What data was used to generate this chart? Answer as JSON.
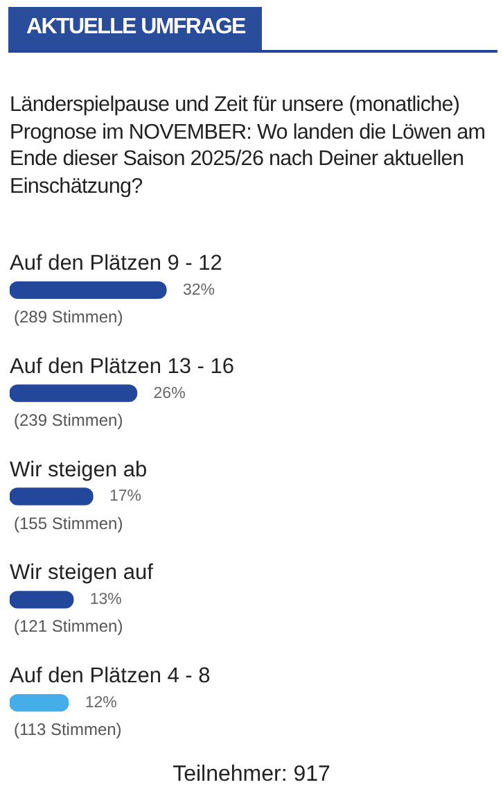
{
  "chart_data": {
    "type": "bar",
    "orientation": "horizontal",
    "title": "AKTUELLE UMFRAGE",
    "subtitle": "Länderspielpause und Zeit für unsere (monatliche) Prognose im NOVEMBER: Wo landen die Löwen am Ende dieser Saison 2025/26 nach Deiner aktuellen Einschätzung?",
    "categories": [
      "Auf den Plätzen 9 - 12",
      "Auf den Plätzen 13 - 16",
      "Wir steigen ab",
      "Wir steigen auf",
      "Auf den Plätzen 4 - 8"
    ],
    "values": [
      32,
      26,
      17,
      13,
      12
    ],
    "colors": [
      "#23479a",
      "#23479a",
      "#23479a",
      "#23479a",
      "#45aee8"
    ],
    "value_labels": [
      "32%",
      "26%",
      "17%",
      "13%",
      "12%"
    ],
    "tick_labels": false,
    "grid": false,
    "legend": false,
    "annotations": [
      "(289 Stimmen)",
      "(239 Stimmen)",
      "(155 Stimmen)",
      "(121 Stimmen)",
      "(113 Stimmen)",
      "Teilnehmer: 917"
    ]
  }
}
